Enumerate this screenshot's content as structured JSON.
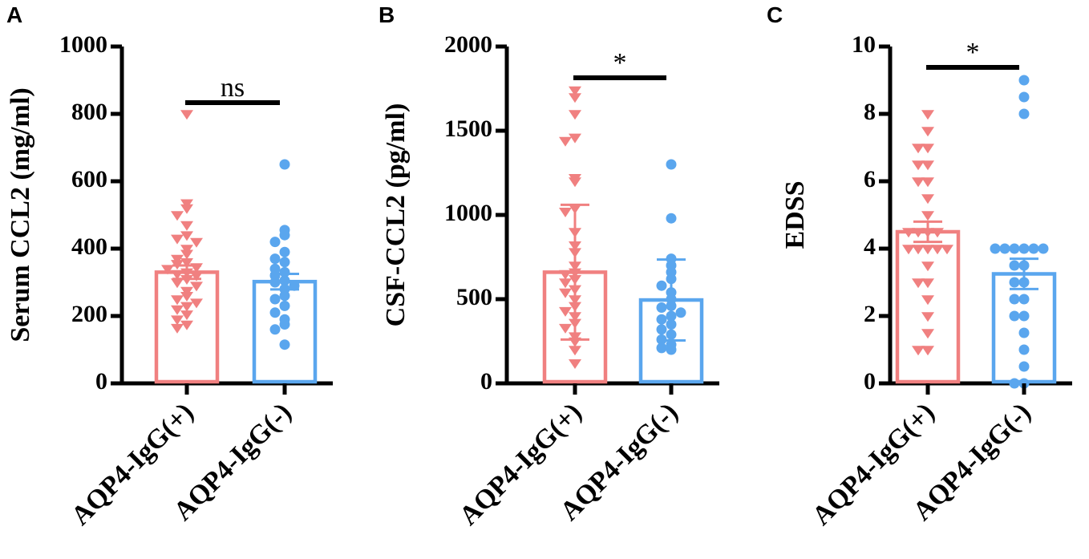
{
  "chart_data": [
    {
      "panel": "A",
      "type": "bar",
      "ylabel": "Serum CCL2 (mg/ml)",
      "ylim": [
        0,
        1000
      ],
      "yticks": [
        0,
        200,
        400,
        600,
        800,
        1000
      ],
      "categories": [
        "AQP4-IgG(+)",
        "AQP4-IgG(-)"
      ],
      "series": [
        {
          "name": "AQP4-IgG(+)",
          "color": "#f08080",
          "marker": "triangle-down",
          "mean": 330,
          "err": 20,
          "points": [
            800,
            535,
            520,
            500,
            470,
            440,
            430,
            420,
            400,
            385,
            370,
            360,
            355,
            345,
            340,
            330,
            325,
            320,
            310,
            300,
            290,
            275,
            260,
            250,
            240,
            230,
            220,
            205,
            190,
            175,
            165
          ]
        },
        {
          "name": "AQP4-IgG(-)",
          "color": "#5aa6ee",
          "marker": "circle",
          "mean": 302,
          "err": 23,
          "points": [
            650,
            455,
            440,
            420,
            390,
            370,
            360,
            340,
            330,
            320,
            305,
            300,
            290,
            280,
            260,
            250,
            230,
            210,
            190,
            175,
            160,
            115
          ]
        }
      ],
      "comparison": "ns"
    },
    {
      "panel": "B",
      "type": "bar",
      "ylabel": "CSF-CCL2 (pg/ml)",
      "ylim": [
        0,
        2000
      ],
      "yticks": [
        0,
        500,
        1000,
        1500,
        2000
      ],
      "categories": [
        "AQP4-IgG(+)",
        "AQP4-IgG(-)"
      ],
      "series": [
        {
          "name": "AQP4-IgG(+)",
          "color": "#f08080",
          "marker": "triangle-down",
          "mean": 660,
          "err": 400,
          "points": [
            1740,
            1700,
            1600,
            1460,
            1440,
            1220,
            1200,
            1040,
            1020,
            900,
            820,
            780,
            700,
            660,
            650,
            620,
            600,
            560,
            540,
            500,
            460,
            430,
            400,
            360,
            330,
            280,
            250,
            200,
            120
          ]
        },
        {
          "name": "AQP4-IgG(-)",
          "color": "#5aa6ee",
          "marker": "circle",
          "mean": 495,
          "err": 240,
          "points": [
            1300,
            980,
            740,
            700,
            660,
            620,
            580,
            540,
            500,
            460,
            450,
            420,
            400,
            380,
            350,
            320,
            290,
            260,
            230,
            210,
            200
          ]
        }
      ],
      "comparison": "*"
    },
    {
      "panel": "C",
      "type": "bar",
      "ylabel": "EDSS",
      "ylim": [
        0,
        10
      ],
      "yticks": [
        0,
        2,
        4,
        6,
        8,
        10
      ],
      "categories": [
        "AQP4-IgG(+)",
        "AQP4-IgG(-)"
      ],
      "series": [
        {
          "name": "AQP4-IgG(+)",
          "color": "#f08080",
          "marker": "triangle-down",
          "mean": 4.5,
          "err": 0.3,
          "points": [
            8,
            7.5,
            7,
            7,
            6.5,
            6.5,
            6,
            6,
            5.5,
            5,
            4.5,
            4.5,
            4.5,
            4.5,
            4,
            4,
            4,
            4,
            4,
            3.5,
            3,
            3,
            2.5,
            2,
            1.5,
            1,
            1
          ]
        },
        {
          "name": "AQP4-IgG(-)",
          "color": "#5aa6ee",
          "marker": "circle",
          "mean": 3.25,
          "err": 0.45,
          "points": [
            9,
            8.5,
            8,
            4,
            4,
            4,
            4,
            4,
            4,
            3.5,
            3.5,
            3,
            3,
            2.5,
            2.5,
            2,
            2,
            1.5,
            1,
            0.5,
            0,
            0
          ]
        }
      ],
      "comparison": "*"
    }
  ]
}
